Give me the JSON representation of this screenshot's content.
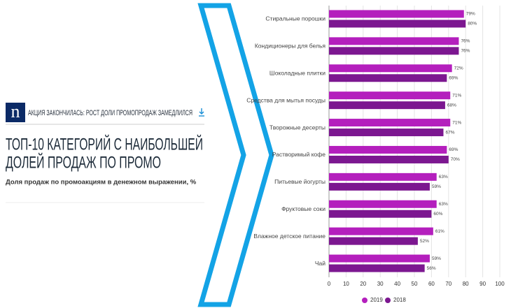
{
  "chart_data": {
    "type": "bar",
    "orientation": "horizontal",
    "logo": "n",
    "kicker": "АКЦИЯ ЗАКОНЧИЛАСЬ: РОСТ ДОЛИ ПРОМОПРОДАЖ ЗАМЕДЛИЛСЯ",
    "title": [
      "ТОП-10 КАТЕГОРИЙ С НАИБОЛЬШЕЙ",
      "ДОЛЕЙ ПРОДАЖ ПО ПРОМО"
    ],
    "subtitle": "Доля продаж по промоакциям в денежном выражении, %",
    "categories": [
      "Стиральные порошки",
      "Кондиционеры для белья",
      "Шоколадные плитки",
      "Средства для мытья посуды",
      "Творожные десерты",
      "Растворимый кофе",
      "Питьевые йогурты",
      "Фруктовые соки",
      "Влажное детское питание",
      "Чай"
    ],
    "series": [
      {
        "name": "2019",
        "color": "#b41fbd",
        "values": [
          79,
          76,
          72,
          71,
          71,
          69,
          63,
          63,
          61,
          59
        ],
        "value_labels": [
          "79%",
          "76%",
          "72%",
          "71%",
          "71%",
          "69%",
          "63%",
          "63%",
          "61%",
          "59%"
        ]
      },
      {
        "name": "2018",
        "color": "#7c1790",
        "values": [
          80,
          76,
          69,
          68,
          67,
          70,
          59,
          60,
          52,
          56
        ],
        "value_labels": [
          "80%",
          "76%",
          "69%",
          "68%",
          "67%",
          "70%",
          "59%",
          "60%",
          "52%",
          "56%"
        ]
      }
    ],
    "xlim": [
      0,
      100
    ],
    "xticks": [
      0,
      10,
      20,
      30,
      40,
      50,
      60,
      70,
      80,
      90,
      100
    ],
    "grid": true,
    "legend": "bottom"
  }
}
